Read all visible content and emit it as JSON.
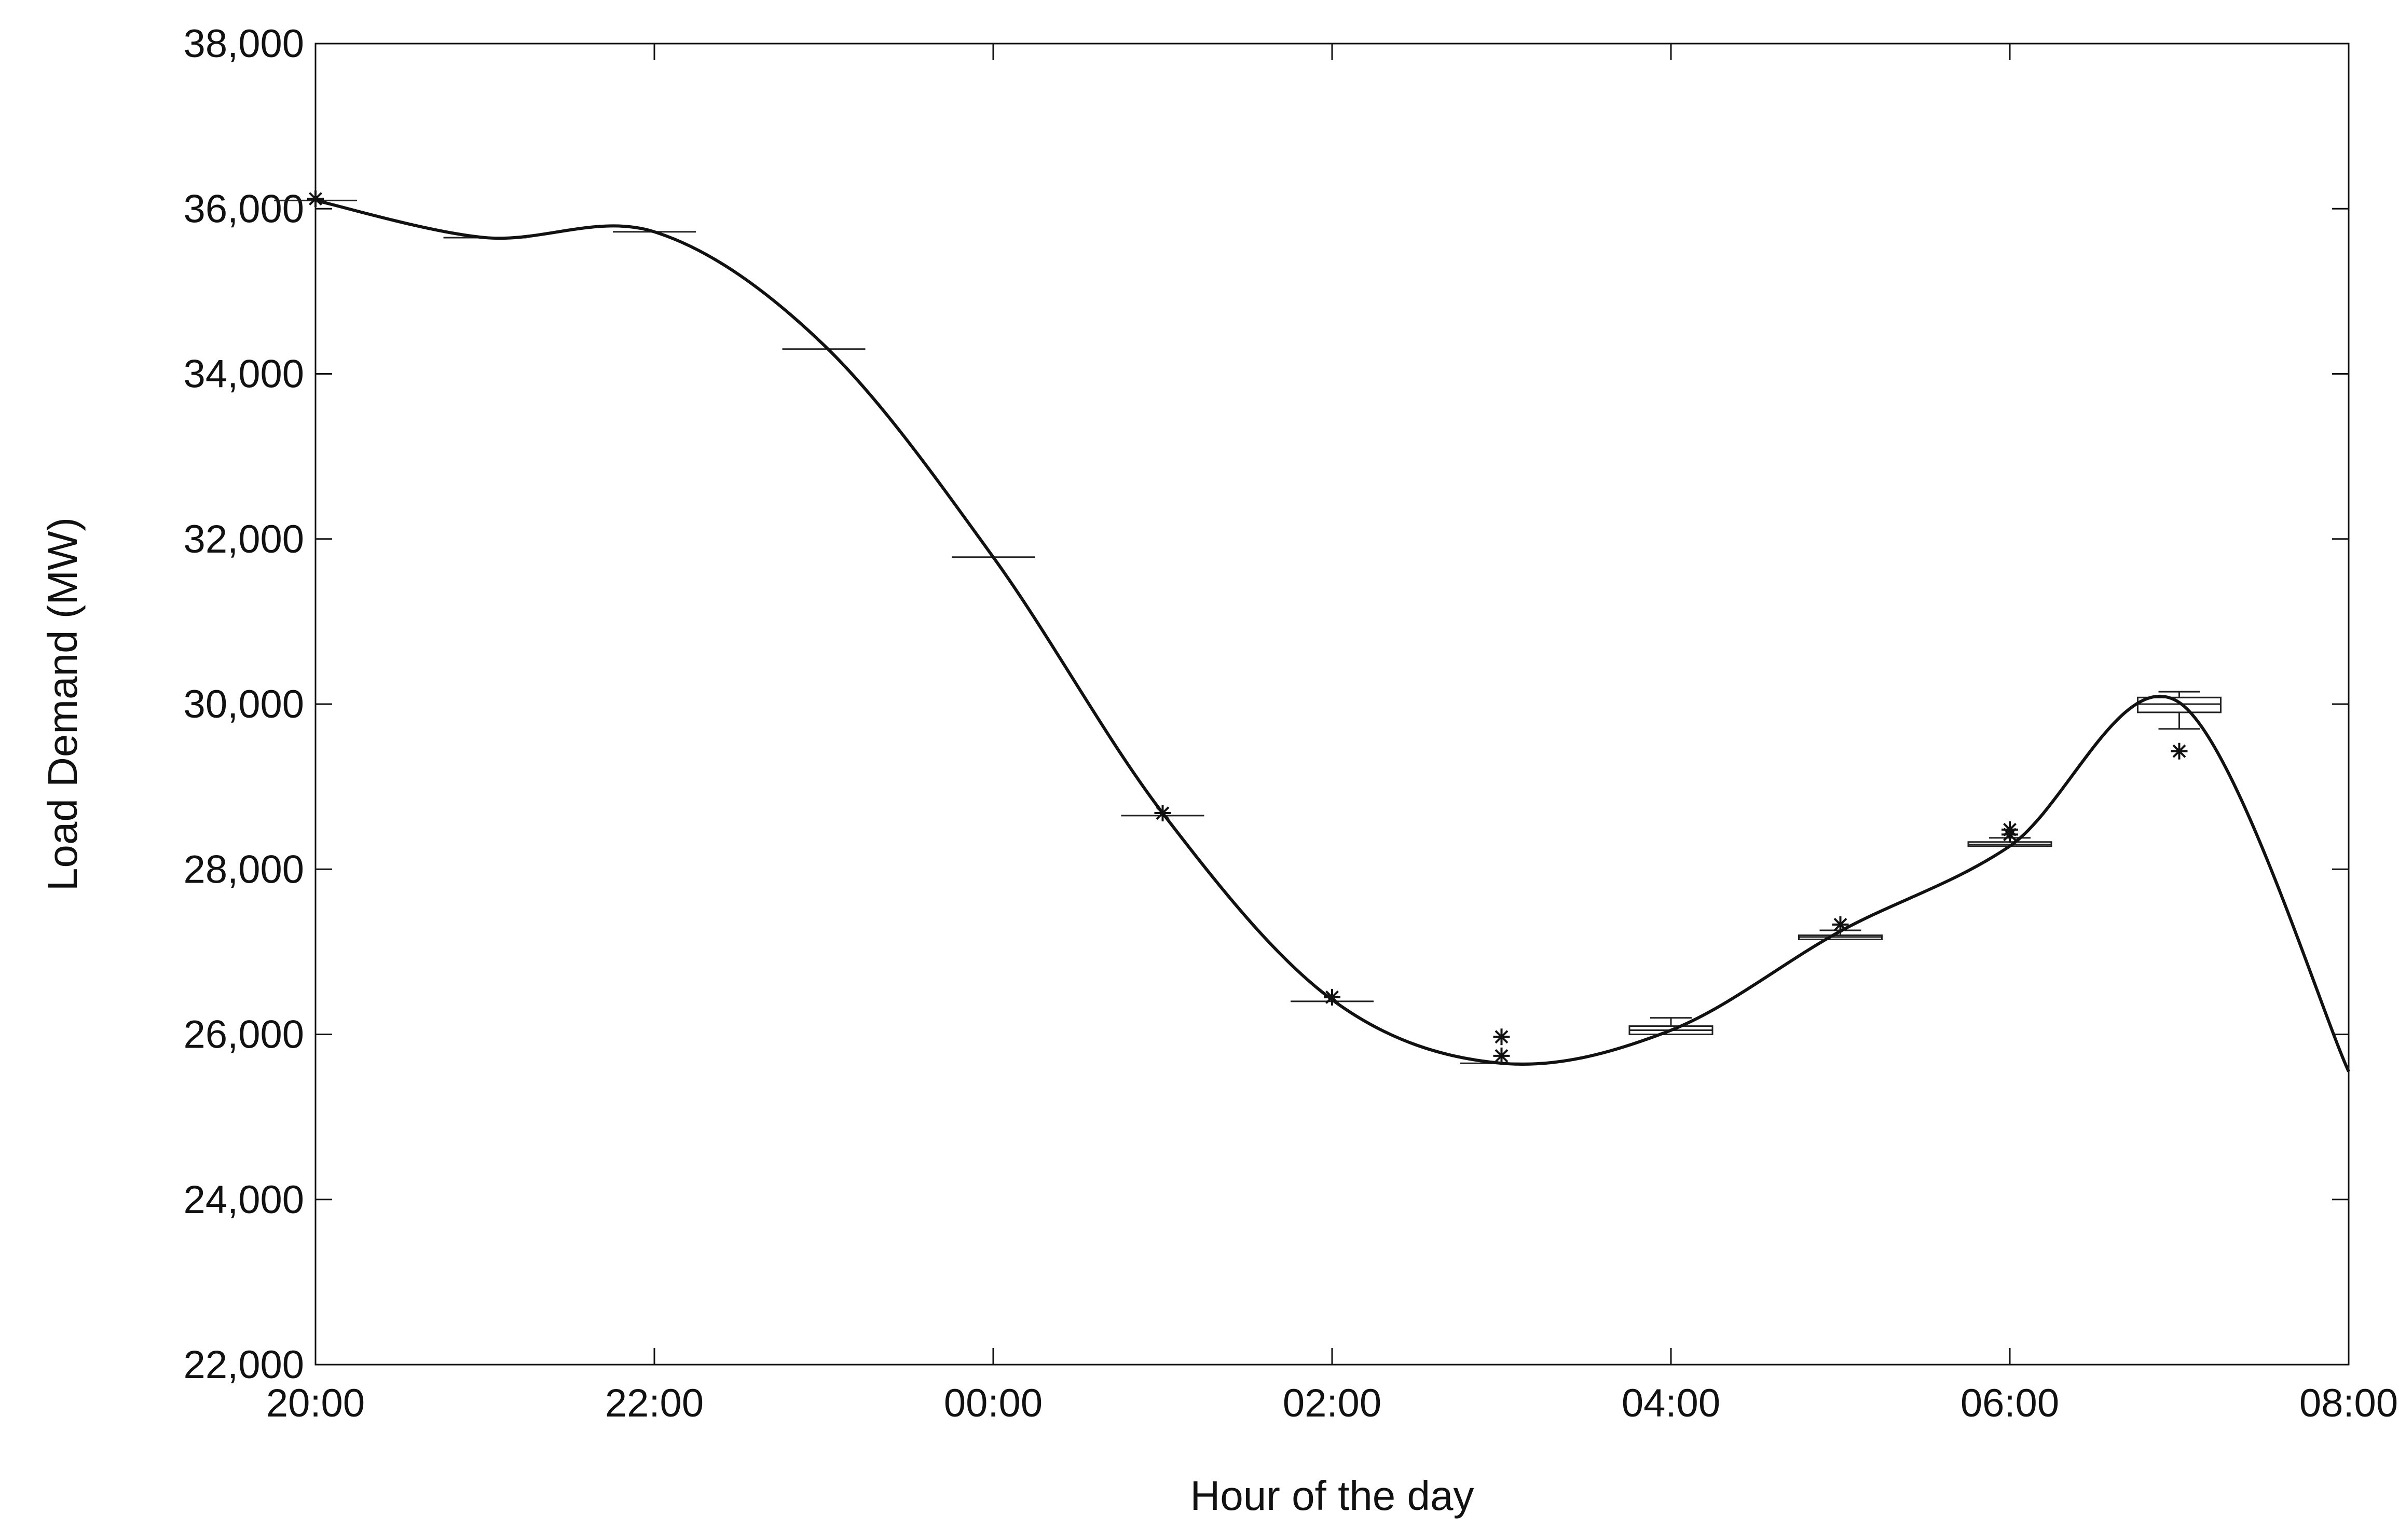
{
  "chart_data": {
    "type": "box",
    "xlabel": "Hour of the day",
    "ylabel": "Load Demand (MW)",
    "ylim": [
      22000,
      38000
    ],
    "xlim": [
      "20:00",
      "08:00"
    ],
    "x_tick_labels": [
      "20:00",
      "22:00",
      "00:00",
      "02:00",
      "04:00",
      "06:00",
      "08:00"
    ],
    "y_tick_labels": [
      "22,000",
      "24,000",
      "26,000",
      "28,000",
      "30,000",
      "32,000",
      "34,000",
      "36,000",
      "38,000"
    ],
    "grid": false,
    "legend": "none",
    "boxes": [
      {
        "hour": "20:00",
        "min": 36100,
        "q1": 36100,
        "median": 36100,
        "q3": 36100,
        "max": 36100,
        "outliers": [
          36120
        ]
      },
      {
        "hour": "21:00",
        "min": 35650,
        "q1": 35650,
        "median": 35650,
        "q3": 35650,
        "max": 35650,
        "outliers": []
      },
      {
        "hour": "22:00",
        "min": 35720,
        "q1": 35720,
        "median": 35720,
        "q3": 35720,
        "max": 35720,
        "outliers": []
      },
      {
        "hour": "23:00",
        "min": 34300,
        "q1": 34300,
        "median": 34300,
        "q3": 34300,
        "max": 34300,
        "outliers": []
      },
      {
        "hour": "00:00",
        "min": 31780,
        "q1": 31780,
        "median": 31780,
        "q3": 31780,
        "max": 31780,
        "outliers": []
      },
      {
        "hour": "01:00",
        "min": 28650,
        "q1": 28650,
        "median": 28650,
        "q3": 28650,
        "max": 28650,
        "outliers": [
          28680
        ]
      },
      {
        "hour": "02:00",
        "min": 26400,
        "q1": 26400,
        "median": 26400,
        "q3": 26400,
        "max": 26400,
        "outliers": [
          26450
        ]
      },
      {
        "hour": "03:00",
        "min": 25650,
        "q1": 25650,
        "median": 25650,
        "q3": 25650,
        "max": 25650,
        "outliers": [
          25970,
          25740
        ]
      },
      {
        "hour": "04:00",
        "min": 26000,
        "q1": 26000,
        "median": 26050,
        "q3": 26100,
        "max": 26200,
        "outliers": []
      },
      {
        "hour": "05:00",
        "min": 27150,
        "q1": 27150,
        "median": 27180,
        "q3": 27200,
        "max": 27260,
        "outliers": [
          27330
        ]
      },
      {
        "hour": "06:00",
        "min": 28280,
        "q1": 28280,
        "median": 28300,
        "q3": 28330,
        "max": 28380,
        "outliers": [
          28480,
          28420
        ]
      },
      {
        "hour": "07:00",
        "min": 29700,
        "q1": 29900,
        "median": 30000,
        "q3": 30080,
        "max": 30150,
        "outliers": [
          29430
        ]
      }
    ],
    "fit_line": {
      "x": [
        "20:00",
        "21:00",
        "22:00",
        "23:00",
        "00:00",
        "01:00",
        "02:00",
        "03:00",
        "04:00",
        "05:00",
        "06:00",
        "07:00",
        "08:00"
      ],
      "y": [
        36100,
        35650,
        35720,
        34350,
        31780,
        28680,
        26420,
        25650,
        26050,
        27250,
        28280,
        30020,
        25550
      ]
    }
  }
}
